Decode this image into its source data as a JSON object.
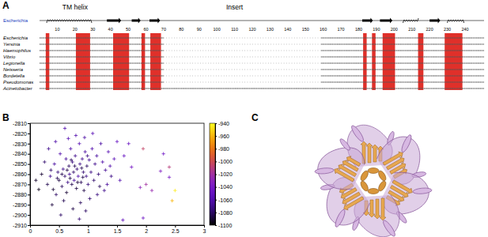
{
  "panel_labels": [
    "A",
    "B",
    "C"
  ],
  "alignment": {
    "reference": "Escherichia",
    "regions": [
      {
        "label": "TM helix",
        "start": 5,
        "end": 35
      },
      {
        "label": "Insert",
        "start": 70,
        "end": 150
      }
    ],
    "sequences": [
      "Escherichia",
      "Yersinia",
      "Haemophilus",
      "Vibrio",
      "Legionella",
      "Neisseria",
      "Bordetella",
      "Pseudomonas",
      "Acinetobacter"
    ],
    "ruler": [
      10,
      20,
      30,
      40,
      50,
      60,
      70,
      80,
      90,
      100,
      110,
      120,
      130,
      140,
      150,
      160,
      170,
      180,
      190,
      200,
      210,
      220,
      230,
      240
    ],
    "secondary_structure": [
      {
        "type": "helix",
        "start": 4,
        "end": 30
      },
      {
        "type": "strand",
        "start": 38,
        "end": 46
      },
      {
        "type": "strand",
        "start": 52,
        "end": 57
      },
      {
        "type": "strand",
        "start": 62,
        "end": 68
      },
      {
        "type": "strand",
        "start": 182,
        "end": 188
      },
      {
        "type": "strand",
        "start": 192,
        "end": 199
      },
      {
        "type": "helix",
        "start": 205,
        "end": 214
      },
      {
        "type": "strand",
        "start": 220,
        "end": 226
      },
      {
        "type": "helix",
        "start": 230,
        "end": 240
      }
    ],
    "conserved_blocks": [
      [
        4,
        5
      ],
      [
        21,
        28
      ],
      [
        42,
        50
      ],
      [
        58,
        59
      ],
      [
        63,
        68
      ],
      [
        183,
        184
      ],
      [
        188,
        189
      ],
      [
        194,
        200
      ],
      [
        214,
        216
      ],
      [
        229,
        238
      ]
    ]
  },
  "chart_data": {
    "type": "scatter",
    "marker": "plus",
    "x": [
      0.3,
      0.35,
      0.4,
      0.42,
      0.45,
      0.48,
      0.5,
      0.52,
      0.55,
      0.57,
      0.6,
      0.62,
      0.63,
      0.65,
      0.67,
      0.68,
      0.7,
      0.72,
      0.73,
      0.75,
      0.76,
      0.78,
      0.8,
      0.81,
      0.83,
      0.85,
      0.86,
      0.88,
      0.9,
      0.92,
      0.93,
      0.95,
      0.97,
      0.98,
      1.0,
      1.02,
      1.05,
      1.07,
      1.1,
      1.12,
      1.15,
      1.18,
      1.2,
      1.25,
      1.3,
      1.35,
      1.4,
      1.45,
      1.5,
      1.55,
      0.2,
      0.25,
      0.15,
      0.1,
      0.32,
      0.38,
      0.44,
      0.58,
      0.66,
      0.74,
      0.79,
      0.87,
      0.94,
      1.03,
      1.08,
      1.16,
      1.22,
      1.28,
      0.53,
      0.85,
      1.6,
      1.95,
      1.9,
      2.0,
      2.1,
      2.25,
      2.4,
      1.95,
      2.5,
      2.45,
      2.4,
      1.75,
      1.7,
      1.62,
      2.3,
      0.6,
      0.55,
      0.69,
      0.77,
      0.71,
      0.64,
      0.82,
      0.89,
      0.47,
      0.91,
      0.99,
      1.33,
      1.38,
      0.36,
      0.96
    ],
    "values": [
      -2870,
      -2862,
      -2875,
      -2850,
      -2880,
      -2858,
      -2866,
      -2840,
      -2872,
      -2855,
      -2862,
      -2845,
      -2878,
      -2868,
      -2852,
      -2860,
      -2835,
      -2870,
      -2848,
      -2858,
      -2866,
      -2842,
      -2874,
      -2855,
      -2862,
      -2830,
      -2850,
      -2868,
      -2845,
      -2858,
      -2876,
      -2838,
      -2862,
      -2852,
      -2870,
      -2846,
      -2858,
      -2835,
      -2866,
      -2850,
      -2842,
      -2860,
      -2872,
      -2848,
      -2856,
      -2838,
      -2862,
      -2845,
      -2828,
      -2866,
      -2860,
      -2848,
      -2875,
      -2866,
      -2835,
      -2890,
      -2828,
      -2886,
      -2825,
      -2894,
      -2822,
      -2888,
      -2824,
      -2884,
      -2820,
      -2880,
      -2830,
      -2876,
      -2900,
      -2904,
      -2905,
      -2903,
      -2873,
      -2870,
      -2876,
      -2857,
      -2853,
      -2835,
      -2876,
      -2886,
      -2863,
      -2853,
      -2830,
      -2842,
      -2840,
      -2815,
      -2860,
      -2864,
      -2852,
      -2846,
      -2856,
      -2868,
      -2854,
      -2864,
      -2863,
      -2842,
      -2870,
      -2852,
      -2856,
      -2896
    ],
    "color_values": [
      -1085,
      -1070,
      -1090,
      -1065,
      -1080,
      -1075,
      -1088,
      -1060,
      -1082,
      -1070,
      -1078,
      -1066,
      -1090,
      -1072,
      -1080,
      -1068,
      -1062,
      -1085,
      -1074,
      -1079,
      -1066,
      -1070,
      -1088,
      -1076,
      -1061,
      -1058,
      -1072,
      -1083,
      -1069,
      -1077,
      -1086,
      -1064,
      -1071,
      -1080,
      -1075,
      -1068,
      -1073,
      -1060,
      -1079,
      -1070,
      -1065,
      -1076,
      -1082,
      -1062,
      -1068,
      -1058,
      -1072,
      -1055,
      -1050,
      -1060,
      -1090,
      -1078,
      -1095,
      -1092,
      -1070,
      -1088,
      -1062,
      -1084,
      -1058,
      -1086,
      -1060,
      -1082,
      -1063,
      -1078,
      -1056,
      -1074,
      -1064,
      -1070,
      -1080,
      -1076,
      -1052,
      -1045,
      -1030,
      -1020,
      -1025,
      -1035,
      -1010,
      -1005,
      -945,
      -960,
      -1040,
      -1040,
      -1048,
      -1050,
      -1045,
      -1060,
      -1084,
      -1087,
      -1083,
      -1081,
      -1086,
      -1089,
      -1084,
      -1083,
      -1085,
      -1072,
      -1066,
      -1061,
      -1079,
      -1080
    ],
    "xlim": [
      0,
      3
    ],
    "xticks": [
      0,
      0.5,
      1,
      1.5,
      2,
      2.5,
      3
    ],
    "ylim": [
      -2910,
      -2810
    ],
    "yticks": [
      -2910,
      -2900,
      -2890,
      -2880,
      -2870,
      -2860,
      -2850,
      -2840,
      -2830,
      -2820,
      -2810
    ],
    "colorbar_lim": [
      -1100,
      -940
    ],
    "colorbar_ticks": [
      -1100,
      -1080,
      -1060,
      -1040,
      -1020,
      -1000,
      -980,
      -960,
      -940
    ]
  }
}
